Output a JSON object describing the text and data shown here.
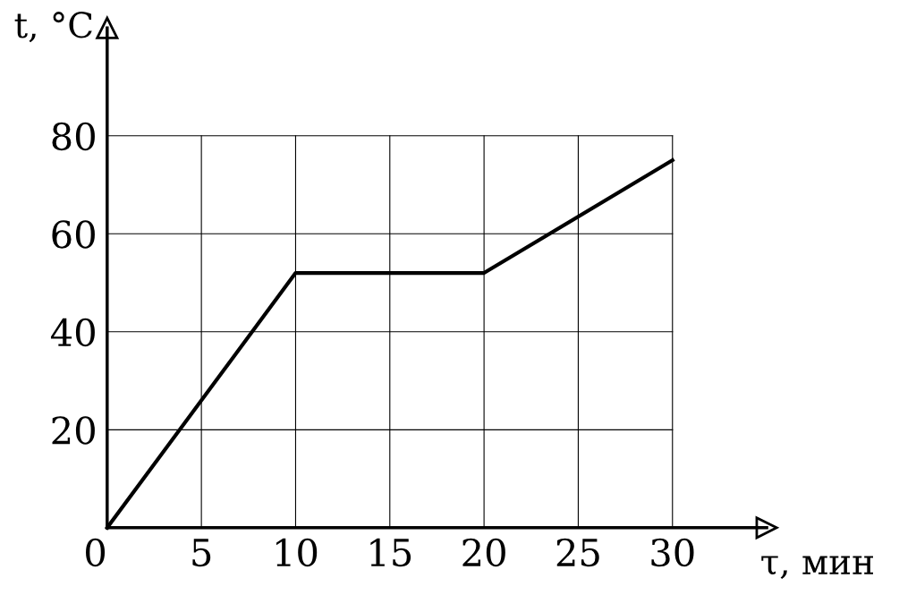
{
  "chart_data": {
    "type": "line",
    "xlabel": "τ, мин",
    "ylabel": "t, °C",
    "x": [
      0,
      10,
      20,
      30
    ],
    "series": [
      {
        "color": "#000000",
        "values": [
          0,
          52,
          52,
          75
        ]
      }
    ],
    "xlim": [
      0,
      35
    ],
    "ylim": [
      0,
      102
    ],
    "xticks": [
      {
        "value": 0,
        "label": "0"
      },
      5,
      10,
      15,
      20,
      25,
      30
    ],
    "yticks": [
      {
        "value": 0,
        "label": null
      },
      20,
      40,
      60,
      80
    ],
    "grid": true,
    "legend": false,
    "marker": "none",
    "line_style": "solid"
  }
}
